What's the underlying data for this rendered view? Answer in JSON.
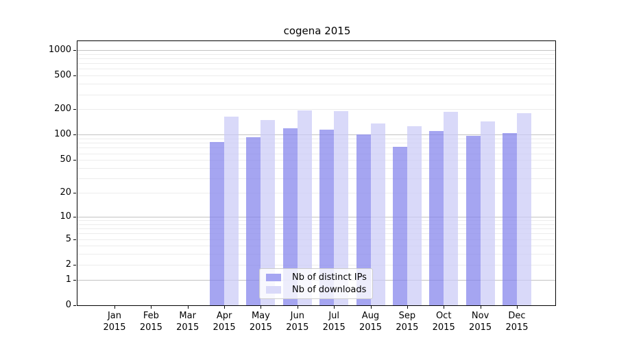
{
  "chart_data": {
    "type": "bar",
    "title": "cogena 2015",
    "yscale": "log1p",
    "ylim": [
      0,
      1300
    ],
    "grid": true,
    "legend_position": "inside lower-center",
    "y_ticks": [
      0,
      1,
      2,
      5,
      10,
      20,
      50,
      100,
      200,
      500,
      1000
    ],
    "y_major_gridlines": [
      1,
      10,
      100,
      1000
    ],
    "y_minor_gridlines": [
      2,
      3,
      4,
      5,
      6,
      7,
      8,
      9,
      20,
      30,
      40,
      50,
      60,
      70,
      80,
      90,
      200,
      300,
      400,
      500,
      600,
      700,
      800,
      900
    ],
    "categories": [
      {
        "month": "Jan",
        "year": "2015"
      },
      {
        "month": "Feb",
        "year": "2015"
      },
      {
        "month": "Mar",
        "year": "2015"
      },
      {
        "month": "Apr",
        "year": "2015"
      },
      {
        "month": "May",
        "year": "2015"
      },
      {
        "month": "Jun",
        "year": "2015"
      },
      {
        "month": "Jul",
        "year": "2015"
      },
      {
        "month": "Aug",
        "year": "2015"
      },
      {
        "month": "Sep",
        "year": "2015"
      },
      {
        "month": "Oct",
        "year": "2015"
      },
      {
        "month": "Nov",
        "year": "2015"
      },
      {
        "month": "Dec",
        "year": "2015"
      }
    ],
    "series": [
      {
        "name": "Nb of distinct IPs",
        "slug": "distinct-ips",
        "color": "rgba(130,130,236,0.72)",
        "swatch_color": "#a5a5f2",
        "values": [
          0,
          0,
          0,
          82,
          93,
          120,
          114,
          100,
          72,
          111,
          97,
          104
        ]
      },
      {
        "name": "Nb of downloads",
        "slug": "downloads",
        "color": "rgba(203,203,247,0.72)",
        "swatch_color": "#d9d9f9",
        "values": [
          0,
          0,
          0,
          165,
          149,
          195,
          192,
          137,
          127,
          186,
          143,
          181
        ]
      }
    ]
  },
  "colors": {
    "background": "#ffffff",
    "axis": "#000000",
    "major_gridline": "#c2c2c2",
    "minor_gridline": "#ececec",
    "legend_border": "#cccccc"
  }
}
